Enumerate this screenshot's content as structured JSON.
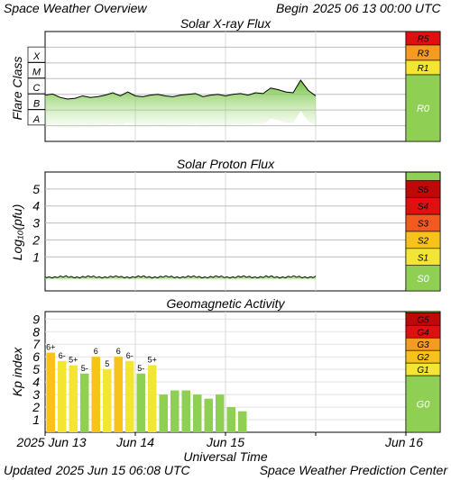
{
  "header": {
    "title": "Space Weather Overview",
    "begin_label": "Begin",
    "begin_value": "2025 06 13 00:00 UTC"
  },
  "footer": {
    "updated_label": "Updated",
    "updated_value": "2025 Jun 15 06:08 UTC",
    "center": "Space Weather Prediction Center",
    "x_axis_title": "Universal Time"
  },
  "colors": {
    "green": "#8fcf54",
    "yellow": "#f5e533",
    "amber": "#f7c21a",
    "orange": "#f59b1f",
    "red_orange": "#f25a1f",
    "red": "#e01010",
    "dark_red": "#c00808"
  },
  "chart_data": [
    {
      "type": "area",
      "title": "Solar X-ray Flux",
      "ylabel": "Flare Class",
      "y_class_labels": [
        "X",
        "M",
        "C",
        "B",
        "A"
      ],
      "scale_labels": [
        "R5",
        "R3",
        "R1",
        "R0"
      ],
      "scale_colors": [
        "#e01010",
        "#f59b1f",
        "#f5e533",
        "#8fcf54"
      ],
      "xlim": [
        0,
        96
      ],
      "ylim_log": [
        -9,
        -2
      ],
      "x_hours": [
        0,
        2,
        4,
        6,
        8,
        10,
        12,
        14,
        16,
        18,
        20,
        22,
        24,
        26,
        28,
        30,
        32,
        34,
        36,
        38,
        40,
        42,
        44,
        46,
        48,
        50,
        52,
        54,
        56,
        58,
        60,
        62,
        64,
        66,
        68,
        70,
        72
      ],
      "flux_log": [
        -6.05,
        -5.98,
        -6.2,
        -6.3,
        -6.25,
        -6.1,
        -6.2,
        -6.15,
        -6.05,
        -5.9,
        -6.1,
        -5.85,
        -6.1,
        -6.15,
        -6.05,
        -6.0,
        -6.1,
        -6.15,
        -6.05,
        -6.0,
        -5.95,
        -6.15,
        -6.05,
        -6.0,
        -6.1,
        -6.0,
        -5.95,
        -6.05,
        -5.9,
        -5.95,
        -5.6,
        -5.7,
        -5.85,
        -5.9,
        -5.1,
        -5.75,
        -6.1
      ]
    },
    {
      "type": "area",
      "title": "Solar Proton Flux",
      "ylabel": "Log₁₀(pfu)",
      "y_ticks": [
        "5",
        "4",
        "3",
        "2",
        "1"
      ],
      "scale_labels": [
        "S5",
        "S4",
        "S3",
        "S2",
        "S1",
        "S0"
      ],
      "scale_colors": [
        "#c00808",
        "#e01010",
        "#f25a1f",
        "#f7c21a",
        "#f5e533",
        "#8fcf54"
      ],
      "ylim": [
        -1,
        6
      ],
      "x_hours": [
        0,
        72
      ],
      "flux_log_avg": -0.18
    },
    {
      "type": "bar",
      "title": "Geomagnetic Activity",
      "ylabel": "Kp index",
      "xlabel": "Universal Time",
      "ylim": [
        0,
        9
      ],
      "y_ticks": [
        9,
        8,
        7,
        6,
        5,
        4,
        3,
        2,
        1
      ],
      "scale_labels": [
        "G5",
        "G4",
        "G3",
        "G2",
        "G1",
        "G0"
      ],
      "scale_colors": [
        "#c00808",
        "#e01010",
        "#f59b1f",
        "#f7c21a",
        "#f5e533",
        "#8fcf54"
      ],
      "x_tick_labels": [
        "2025 Jun 13",
        "Jun 14",
        "Jun 15",
        "Jun 16"
      ],
      "bars": [
        {
          "kp": 6.33,
          "label": "6+"
        },
        {
          "kp": 5.67,
          "label": "6-"
        },
        {
          "kp": 5.33,
          "label": "5+"
        },
        {
          "kp": 4.67,
          "label": "5-"
        },
        {
          "kp": 6.0,
          "label": "6"
        },
        {
          "kp": 5.0,
          "label": "5"
        },
        {
          "kp": 6.0,
          "label": "6"
        },
        {
          "kp": 5.67,
          "label": "6-"
        },
        {
          "kp": 4.67,
          "label": "5-"
        },
        {
          "kp": 5.33,
          "label": "5+"
        },
        {
          "kp": 3.0,
          "label": ""
        },
        {
          "kp": 3.33,
          "label": ""
        },
        {
          "kp": 3.33,
          "label": ""
        },
        {
          "kp": 3.0,
          "label": ""
        },
        {
          "kp": 2.67,
          "label": ""
        },
        {
          "kp": 3.0,
          "label": ""
        },
        {
          "kp": 2.0,
          "label": ""
        },
        {
          "kp": 1.67,
          "label": ""
        }
      ]
    }
  ]
}
